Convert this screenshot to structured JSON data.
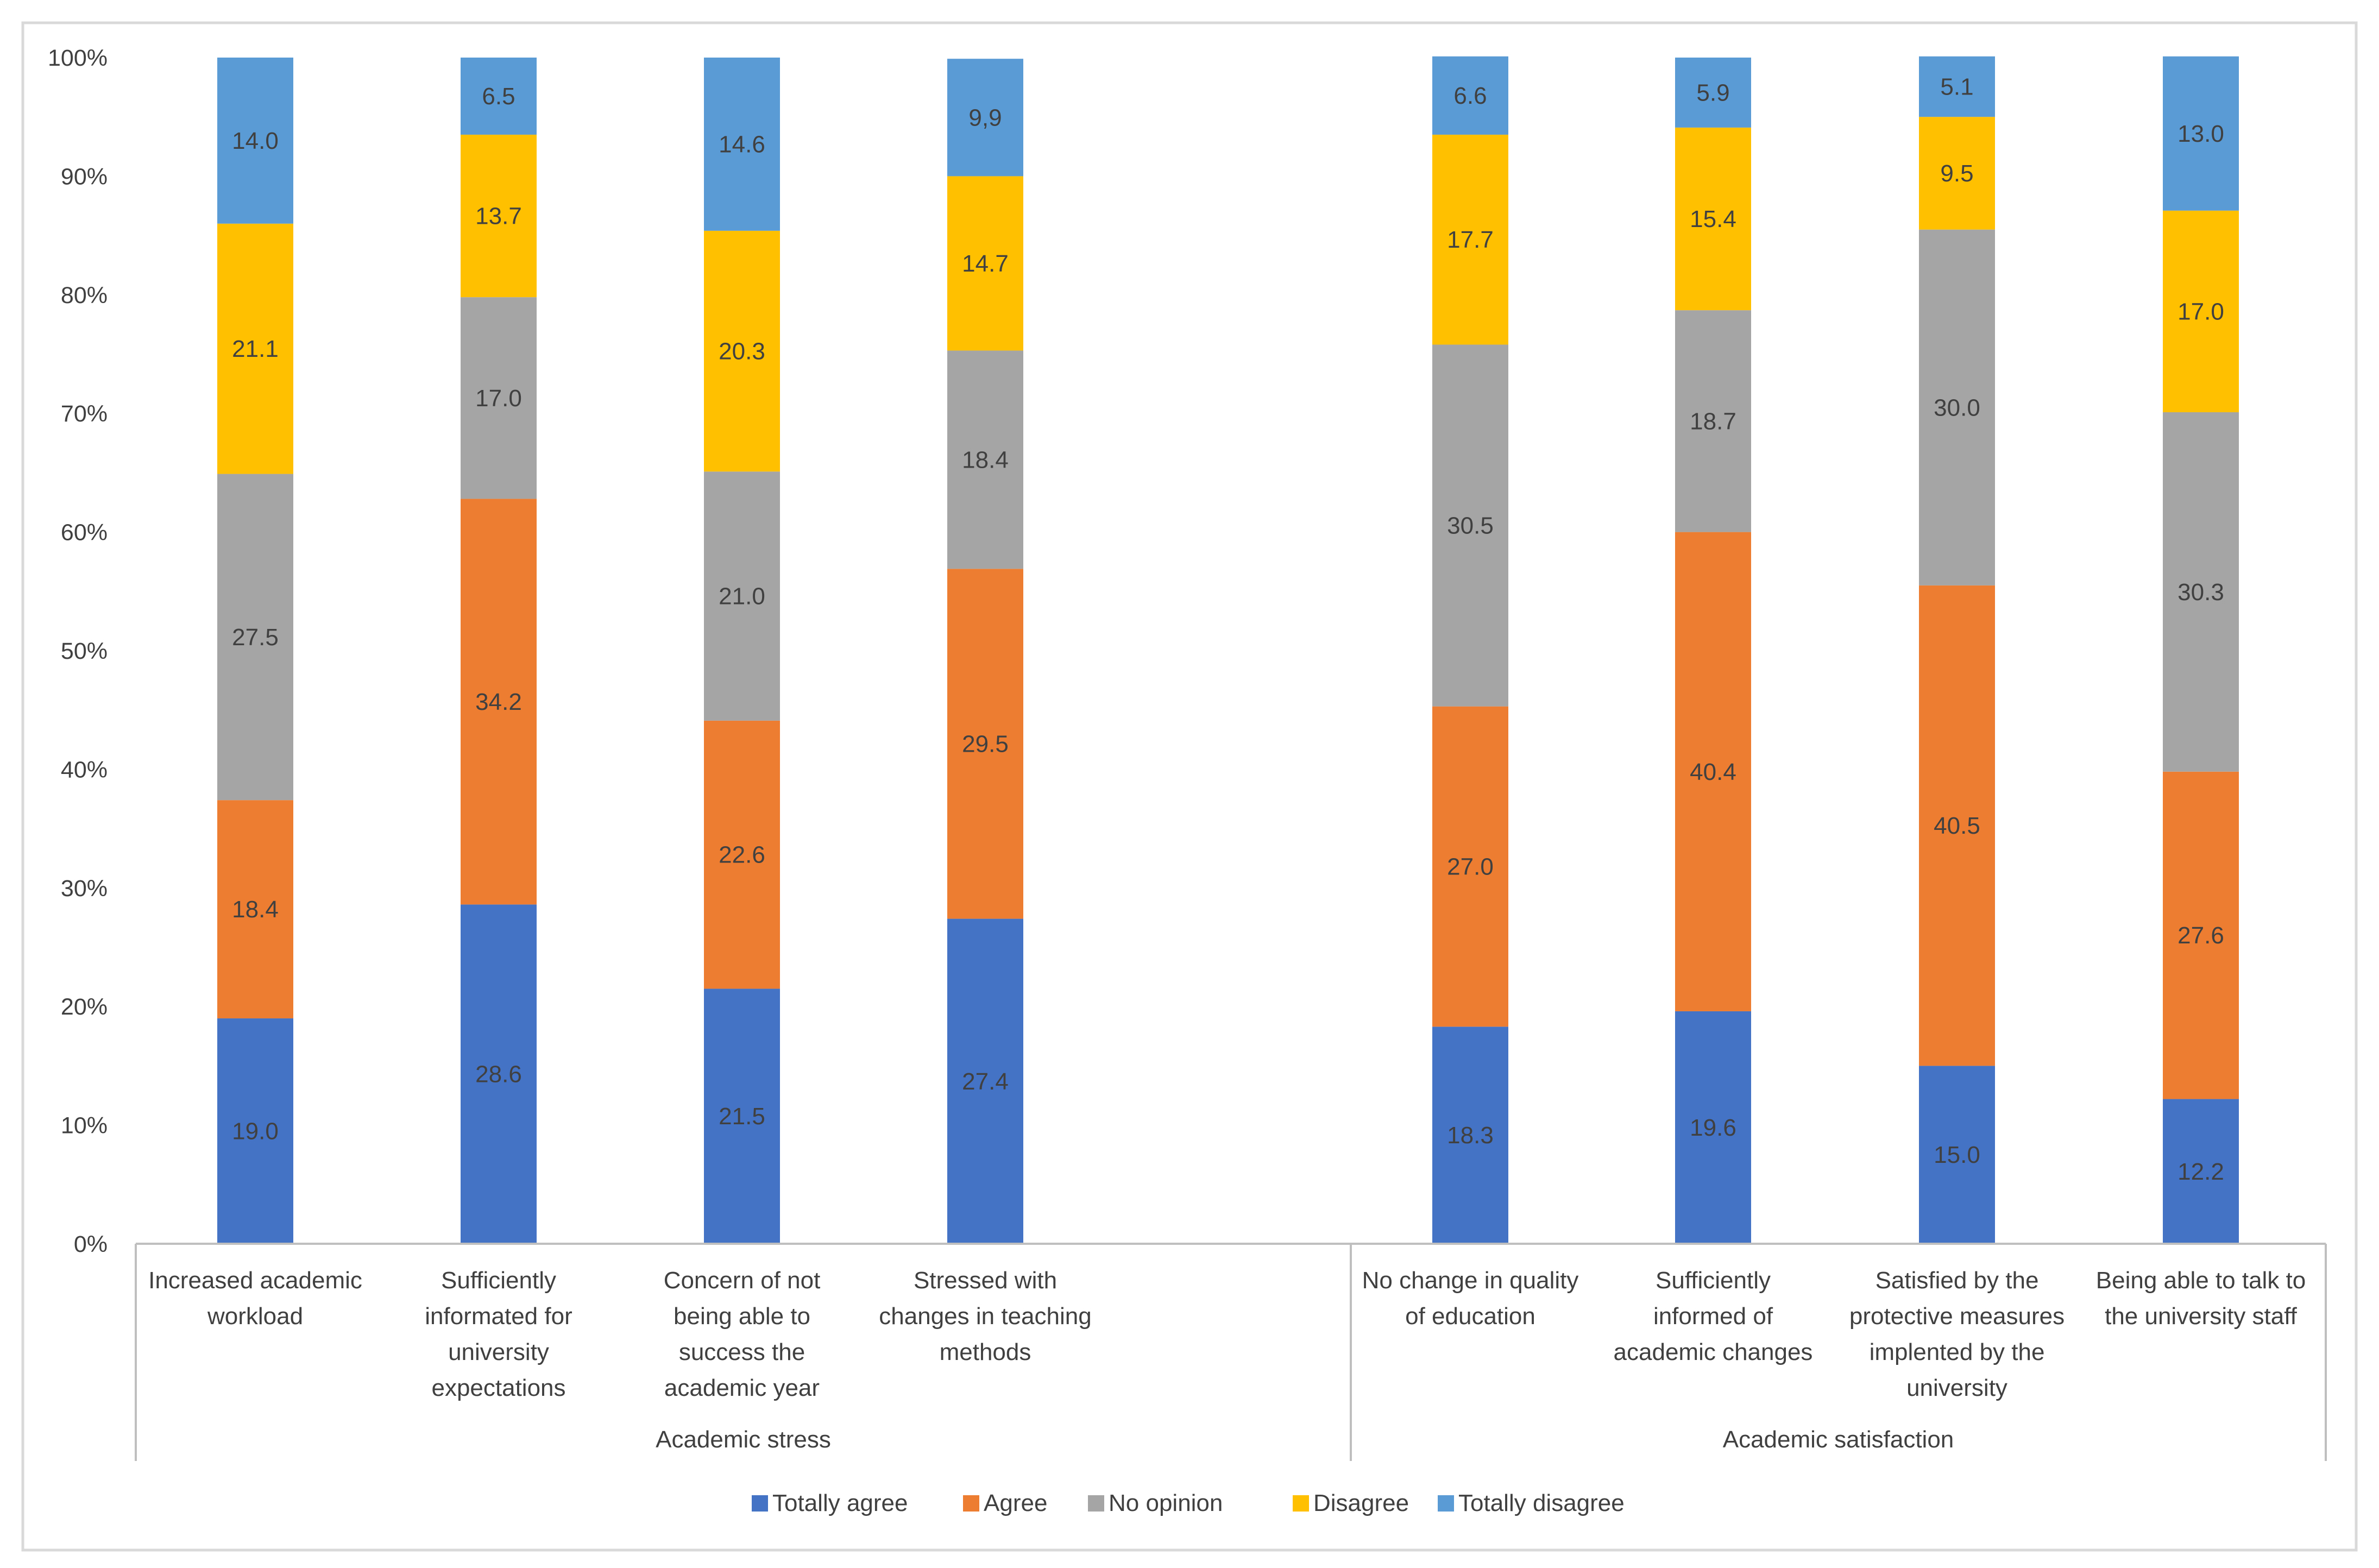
{
  "chart_data": {
    "type": "bar",
    "stacked": true,
    "percent_stacked": true,
    "title": "",
    "xlabel": "",
    "ylabel": "",
    "ylim": [
      0,
      100
    ],
    "y_ticks": [
      "0%",
      "10%",
      "20%",
      "30%",
      "40%",
      "50%",
      "60%",
      "70%",
      "80%",
      "90%",
      "100%"
    ],
    "grid": false,
    "legend_position": "bottom",
    "groups": [
      {
        "label": "Academic stress",
        "categories": [
          0,
          1,
          2,
          3
        ]
      },
      {
        "label": "Academic satisfaction",
        "categories": [
          4,
          5,
          6,
          7
        ]
      }
    ],
    "categories": [
      [
        "Increased academic",
        "workload"
      ],
      [
        "Sufficiently",
        "informated for",
        "university",
        "expectations"
      ],
      [
        "Concern of not",
        "being able to",
        "success the",
        "academic year"
      ],
      [
        "Stressed with",
        "changes in teaching",
        "methods"
      ],
      [
        "No change in quality",
        "of education"
      ],
      [
        "Sufficiently",
        "informed of",
        "academic changes"
      ],
      [
        "Satisfied by the",
        "protective measures",
        "implented by the",
        "university"
      ],
      [
        "Being able to talk to",
        "the university staff"
      ]
    ],
    "series": [
      {
        "name": "Totally agree",
        "color": "#4472c4",
        "values": [
          19.0,
          28.6,
          21.5,
          27.4,
          18.3,
          19.6,
          15.0,
          12.2
        ],
        "labels": [
          "19.0",
          "28.6",
          "21.5",
          "27.4",
          "18.3",
          "19.6",
          "15.0",
          "12.2"
        ]
      },
      {
        "name": "Agree",
        "color": "#ed7d31",
        "values": [
          18.4,
          34.2,
          22.6,
          29.5,
          27.0,
          40.4,
          40.5,
          27.6
        ],
        "labels": [
          "18.4",
          "34.2",
          "22.6",
          "29.5",
          "27.0",
          "40.4",
          "40.5",
          "27.6"
        ]
      },
      {
        "name": "No opinion",
        "color": "#a5a5a5",
        "values": [
          27.5,
          17.0,
          21.0,
          18.4,
          30.5,
          18.7,
          30.0,
          30.3
        ],
        "labels": [
          "27.5",
          "17.0",
          "21.0",
          "18.4",
          "30.5",
          "18.7",
          "30.0",
          "30.3"
        ]
      },
      {
        "name": "Disagree",
        "color": "#ffc000",
        "values": [
          21.1,
          13.7,
          20.3,
          14.7,
          17.7,
          15.4,
          9.5,
          17.0
        ],
        "labels": [
          "21.1",
          "13.7",
          "20.3",
          "14.7",
          "17.7",
          "15.4",
          "9.5",
          "17.0"
        ]
      },
      {
        "name": "Totally disagree",
        "color": "#5b9bd5",
        "values": [
          14.0,
          6.5,
          14.6,
          9.9,
          6.6,
          5.9,
          5.1,
          13.0
        ],
        "labels": [
          "14.0",
          "6.5",
          "14.6",
          "9,9",
          "6.6",
          "5.9",
          "5.1",
          "13.0"
        ]
      }
    ]
  },
  "colors": {
    "axis": "#bfbfbf",
    "text": "#404040",
    "frame": "#d9d9d9",
    "background": "#ffffff"
  }
}
